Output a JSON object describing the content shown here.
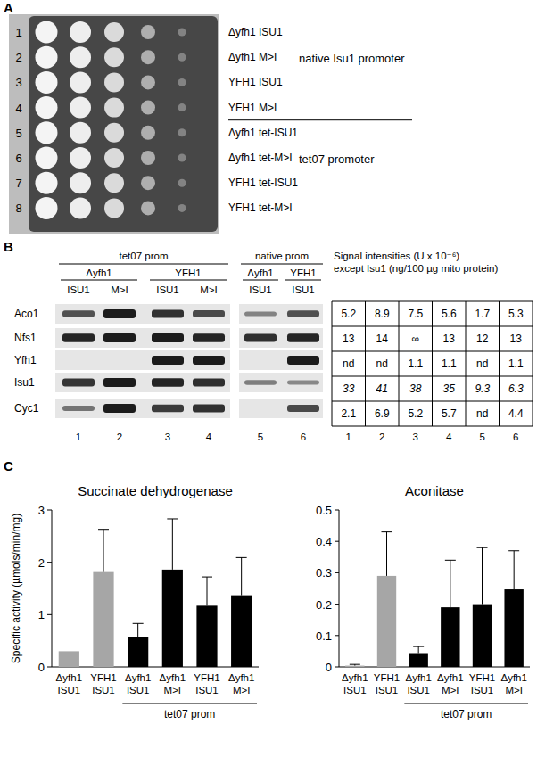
{
  "panel_a": {
    "label": "A",
    "rows": [
      {
        "number": "1",
        "strain": "Δyfh1 ISU1"
      },
      {
        "number": "2",
        "strain": "Δyfh1 M>I"
      },
      {
        "number": "3",
        "strain": "YFH1 ISU1"
      },
      {
        "number": "4",
        "strain": "YFH1 M>I"
      },
      {
        "number": "5",
        "strain": "Δyfh1 tet-ISU1"
      },
      {
        "number": "6",
        "strain": "Δyfh1 tet-M>I"
      },
      {
        "number": "7",
        "strain": "YFH1 tet-ISU1"
      },
      {
        "number": "8",
        "strain": "YFH1 tet-M>I"
      }
    ],
    "groups": [
      {
        "text": "native Isu1 promoter",
        "first": 0,
        "last": 3
      },
      {
        "text": "tet07 promoter",
        "first": 4,
        "last": 7
      }
    ]
  },
  "panel_b": {
    "label": "B",
    "header_groups": [
      {
        "text": "tet07 prom",
        "first": 0,
        "last": 3
      },
      {
        "text": "native prom",
        "first": 4,
        "last": 5
      }
    ],
    "strain_groups": [
      {
        "text": "Δyfh1",
        "first": 0,
        "last": 1
      },
      {
        "text": "YFH1",
        "first": 2,
        "last": 3
      },
      {
        "text": "Δyfh1",
        "first": 4,
        "last": 4
      },
      {
        "text": "YFH1",
        "first": 5,
        "last": 5
      }
    ],
    "lanes": [
      "ISU1",
      "M>I",
      "ISU1",
      "M>I",
      "ISU1",
      "ISU1"
    ],
    "lane_numbers": [
      "1",
      "2",
      "3",
      "4",
      "5",
      "6"
    ],
    "proteins": [
      "Aco1",
      "Nfs1",
      "Yfh1",
      "Isu1",
      "Cyc1"
    ],
    "table": {
      "title": [
        "Signal intensities (U x 10⁻⁶)",
        "except Isu1 (ng/100 µg mito protein)"
      ],
      "rows": [
        [
          "5.2",
          "8.9",
          "7.5",
          "5.6",
          "1.7",
          "5.3"
        ],
        [
          "13",
          "14",
          "∞",
          "13",
          "12",
          "13"
        ],
        [
          "nd",
          "nd",
          "1.1",
          "1.1",
          "nd",
          "1.1"
        ],
        [
          "33",
          "41",
          "38",
          "35",
          "9.3",
          "6.3"
        ],
        [
          "2.1",
          "6.9",
          "5.2",
          "5.7",
          "nd",
          "4.4"
        ]
      ],
      "italic_rows": [
        3
      ]
    }
  },
  "panel_c": {
    "label": "C"
  },
  "chart_data": [
    {
      "type": "bar",
      "title": "Succinate dehydrogenase",
      "y_label": "Specific activity (µmols/min/mg)",
      "categories": [
        "Δyfh1 ISU1",
        "YFH1 ISU1",
        "Δyfh1 ISU1",
        "Δyfh1 M>I",
        "YFH1 ISU1",
        "Δyfh1 M>I"
      ],
      "values": [
        0.3,
        1.83,
        0.57,
        1.86,
        1.17,
        1.37
      ],
      "errors": [
        null,
        0.8,
        0.26,
        0.97,
        0.55,
        0.72
      ],
      "colors": [
        "#a6a6a6",
        "#a6a6a6",
        "#000000",
        "#000000",
        "#000000",
        "#000000"
      ],
      "ylim": [
        0,
        3
      ],
      "yticks": [
        0,
        1,
        2,
        3
      ],
      "group_label": {
        "text": "tet07 prom",
        "first": 2,
        "last": 5
      }
    },
    {
      "type": "bar",
      "title": "Aconitase",
      "categories": [
        "Δyfh1 ISU1",
        "YFH1 ISU1",
        "Δyfh1 ISU1",
        "Δyfh1 M>I",
        "YFH1 ISU1",
        "Δyfh1 M>I"
      ],
      "values": [
        0.004,
        0.29,
        0.044,
        0.19,
        0.2,
        0.247
      ],
      "errors": [
        0.004,
        0.14,
        0.021,
        0.15,
        0.18,
        0.123
      ],
      "colors": [
        "#a6a6a6",
        "#a6a6a6",
        "#000000",
        "#000000",
        "#000000",
        "#000000"
      ],
      "ylim": [
        0,
        0.5
      ],
      "yticks": [
        0,
        0.1,
        0.2,
        0.3,
        0.4,
        0.5
      ],
      "group_label": {
        "text": "tet07 prom",
        "first": 2,
        "last": 5
      }
    }
  ]
}
